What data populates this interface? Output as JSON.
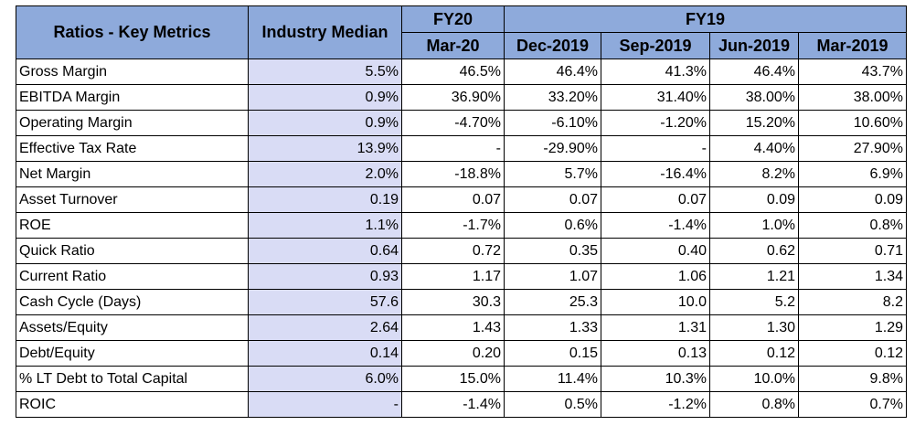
{
  "headers": {
    "metric": "Ratios - Key Metrics",
    "median": "Industry Median",
    "fy20": "FY20",
    "fy19": "FY19",
    "periods": [
      "Mar-20",
      "Dec-2019",
      "Sep-2019",
      "Jun-2019",
      "Mar-2019"
    ]
  },
  "rows": [
    {
      "name": "Gross Margin",
      "median": "5.5%",
      "values": [
        "46.5%",
        "46.4%",
        "41.3%",
        "46.4%",
        "43.7%"
      ]
    },
    {
      "name": "EBITDA Margin",
      "median": "0.9%",
      "values": [
        "36.90%",
        "33.20%",
        "31.40%",
        "38.00%",
        "38.00%"
      ]
    },
    {
      "name": "Operating Margin",
      "median": "0.9%",
      "values": [
        "-4.70%",
        "-6.10%",
        "-1.20%",
        "15.20%",
        "10.60%"
      ]
    },
    {
      "name": "Effective Tax Rate",
      "median": "13.9%",
      "values": [
        "-",
        "-29.90%",
        "-",
        "4.40%",
        "27.90%"
      ]
    },
    {
      "name": "Net Margin",
      "median": "2.0%",
      "values": [
        "-18.8%",
        "5.7%",
        "-16.4%",
        "8.2%",
        "6.9%"
      ]
    },
    {
      "name": "Asset Turnover",
      "median": "0.19",
      "values": [
        "0.07",
        "0.07",
        "0.07",
        "0.09",
        "0.09"
      ]
    },
    {
      "name": "ROE",
      "median": "1.1%",
      "values": [
        "-1.7%",
        "0.6%",
        "-1.4%",
        "1.0%",
        "0.8%"
      ]
    },
    {
      "name": "Quick Ratio",
      "median": "0.64",
      "values": [
        "0.72",
        "0.35",
        "0.40",
        "0.62",
        "0.71"
      ]
    },
    {
      "name": "Current Ratio",
      "median": "0.93",
      "values": [
        "1.17",
        "1.07",
        "1.06",
        "1.21",
        "1.34"
      ]
    },
    {
      "name": "Cash Cycle (Days)",
      "median": "57.6",
      "values": [
        "30.3",
        "25.3",
        "10.0",
        "5.2",
        "8.2"
      ]
    },
    {
      "name": "Assets/Equity",
      "median": "2.64",
      "values": [
        "1.43",
        "1.33",
        "1.31",
        "1.30",
        "1.29"
      ]
    },
    {
      "name": "Debt/Equity",
      "median": "0.14",
      "values": [
        "0.20",
        "0.15",
        "0.13",
        "0.12",
        "0.12"
      ]
    },
    {
      "name": "% LT Debt to Total Capital",
      "median": "6.0%",
      "values": [
        "15.0%",
        "11.4%",
        "10.3%",
        "10.0%",
        "9.8%"
      ]
    },
    {
      "name": "ROIC",
      "median": "-",
      "values": [
        "-1.4%",
        "0.5%",
        "-1.2%",
        "0.8%",
        "0.7%"
      ]
    }
  ]
}
